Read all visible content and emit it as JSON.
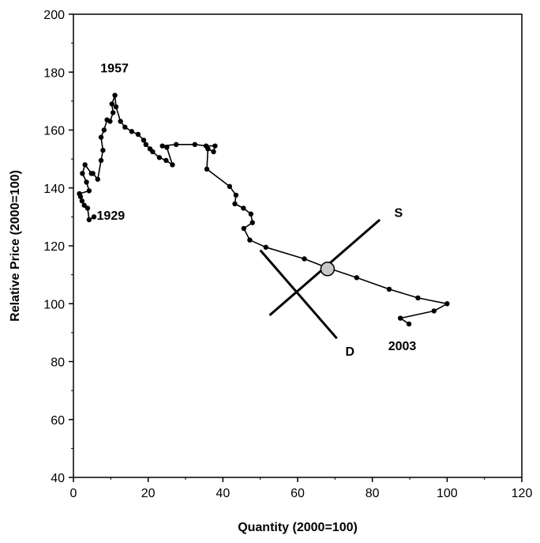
{
  "chart_data": {
    "type": "scatter",
    "title": "",
    "xlabel": "Quantity (2000=100)",
    "ylabel": "Relative Price (2000=100)",
    "xlim": [
      0,
      120
    ],
    "ylim": [
      40,
      200
    ],
    "xticks": [
      "0",
      "20",
      "40",
      "60",
      "80",
      "100",
      "120"
    ],
    "yticks": [
      "40",
      "60",
      "80",
      "100",
      "120",
      "140",
      "160",
      "180",
      "200"
    ],
    "grid": false,
    "legend": "none",
    "series": [
      {
        "points": [
          [
            5.5,
            130
          ],
          [
            4.2,
            129
          ],
          [
            3.8,
            133
          ],
          [
            2.9,
            134
          ],
          [
            2.3,
            135.5
          ],
          [
            1.9,
            137
          ],
          [
            1.6,
            138
          ],
          [
            4.2,
            139
          ],
          [
            3.5,
            142
          ],
          [
            2.4,
            145
          ],
          [
            3.1,
            148
          ],
          [
            4.8,
            145
          ],
          [
            5.2,
            145
          ],
          [
            6.5,
            143
          ],
          [
            7.4,
            149.5
          ],
          [
            7.9,
            153
          ],
          [
            7.4,
            157.5
          ],
          [
            8.2,
            160
          ],
          [
            9.0,
            163.5
          ],
          [
            9.8,
            163
          ],
          [
            10.6,
            166
          ],
          [
            10.3,
            169
          ],
          [
            11.1,
            172
          ],
          [
            11.4,
            168
          ],
          [
            12.6,
            163
          ],
          [
            13.8,
            161
          ],
          [
            15.6,
            159.5
          ],
          [
            17.3,
            158.5
          ],
          [
            18.8,
            156.5
          ],
          [
            19.4,
            155
          ],
          [
            20.5,
            153.5
          ],
          [
            21.2,
            152.5
          ],
          [
            23.0,
            150.5
          ],
          [
            24.8,
            149.5
          ],
          [
            26.5,
            148
          ],
          [
            25.0,
            154
          ],
          [
            23.8,
            154.5
          ],
          [
            27.5,
            155
          ],
          [
            32.5,
            155
          ],
          [
            35.5,
            154.5
          ],
          [
            37.9,
            154.5
          ],
          [
            37.5,
            152.5
          ],
          [
            36.0,
            153.5
          ],
          [
            35.7,
            146.5
          ],
          [
            41.8,
            140.5
          ],
          [
            43.5,
            137.5
          ],
          [
            43.2,
            134.5
          ],
          [
            45.5,
            133
          ],
          [
            47.5,
            131
          ],
          [
            47.9,
            128
          ],
          [
            45.6,
            126
          ],
          [
            47.2,
            122
          ],
          [
            51.5,
            119.5
          ],
          [
            61.8,
            115.5
          ],
          [
            67.8,
            112.5
          ],
          [
            75.8,
            109
          ],
          [
            84.5,
            105
          ],
          [
            92.2,
            102
          ],
          [
            100.0,
            100
          ],
          [
            96.5,
            97.5
          ],
          [
            87.5,
            95
          ],
          [
            89.8,
            93
          ]
        ]
      }
    ],
    "supply_line": [
      [
        52.5,
        96
      ],
      [
        82.0,
        129
      ]
    ],
    "demand_line": [
      [
        50.0,
        118.5
      ],
      [
        70.5,
        88
      ]
    ],
    "equilibrium": [
      68.0,
      112.0
    ],
    "annotations": [
      {
        "text": "1957",
        "x": 11,
        "y": 180
      },
      {
        "text": "1929",
        "x": 10,
        "y": 129
      },
      {
        "text": "S",
        "x": 87,
        "y": 130
      },
      {
        "text": "D",
        "x": 74,
        "y": 82
      },
      {
        "text": "2003",
        "x": 88,
        "y": 84
      }
    ]
  }
}
